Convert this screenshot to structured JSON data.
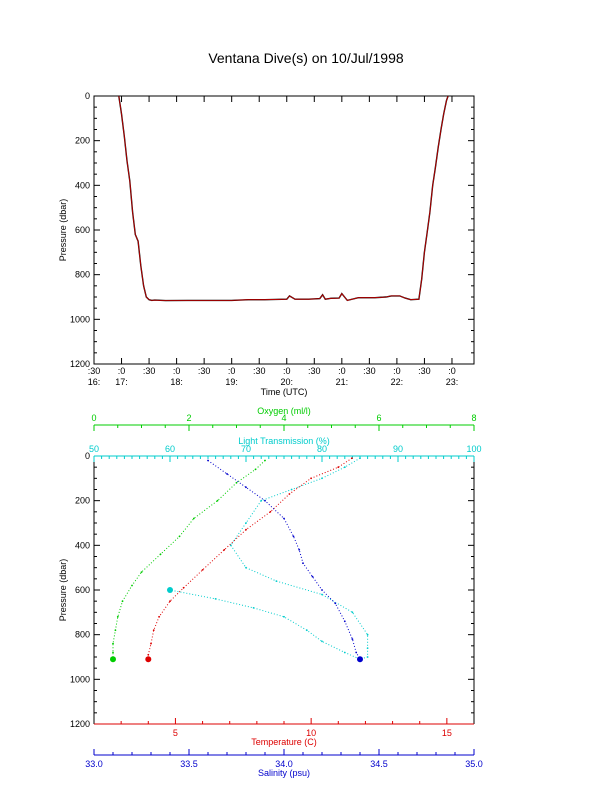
{
  "title": "Ventana Dive(s) on 10/Jul/1998",
  "colors": {
    "axis": "#000000",
    "depth_trace": "#cc0000",
    "oxygen": "#00cc00",
    "light": "#00cccc",
    "temperature": "#dd0000",
    "salinity": "#0000cc"
  },
  "chart_data": [
    {
      "type": "line",
      "title": "Ventana Dive(s) on 10/Jul/1998",
      "xlabel": "Time (UTC)",
      "ylabel": "Pressure (dbar)",
      "ylim": [
        1200,
        0
      ],
      "y_reversed": true,
      "yticks": [
        "0",
        "200",
        "400",
        "600",
        "800",
        "1000",
        "1200"
      ],
      "xticks": [
        {
          "top": ":30",
          "bottom": "16:"
        },
        {
          "top": ":0",
          "bottom": "17:"
        },
        {
          "top": ":30",
          "bottom": ""
        },
        {
          "top": ":0",
          "bottom": "18:"
        },
        {
          "top": ":30",
          "bottom": ""
        },
        {
          "top": ":0",
          "bottom": "19:"
        },
        {
          "top": ":30",
          "bottom": ""
        },
        {
          "top": ":0",
          "bottom": "20:"
        },
        {
          "top": ":30",
          "bottom": ""
        },
        {
          "top": ":0",
          "bottom": "21:"
        },
        {
          "top": ":30",
          "bottom": ""
        },
        {
          "top": ":0",
          "bottom": "22:"
        },
        {
          "top": ":30",
          "bottom": ""
        },
        {
          "top": ":0",
          "bottom": "23:"
        }
      ],
      "xlim_hours": [
        16.5,
        23.4
      ],
      "series": [
        {
          "x_hours": [
            16.95,
            17.0,
            17.05,
            17.1,
            17.15,
            17.2,
            17.25,
            17.3,
            17.35,
            17.4,
            17.45,
            17.5,
            17.55,
            17.6,
            17.8,
            18.2,
            18.6,
            19.0,
            19.3,
            19.6,
            20.0,
            20.05,
            20.15,
            20.4,
            20.6,
            20.65,
            20.7,
            20.8,
            20.95,
            21.0,
            21.1,
            21.3,
            21.6,
            21.8,
            21.9,
            22.05,
            22.15,
            22.25,
            22.4,
            22.45,
            22.5,
            22.55,
            22.6,
            22.65,
            22.7,
            22.75,
            22.8,
            22.85,
            22.9,
            22.93
          ],
          "y": [
            0,
            80,
            180,
            290,
            380,
            520,
            620,
            650,
            760,
            850,
            900,
            912,
            915,
            914,
            916,
            915,
            915,
            915,
            912,
            912,
            910,
            895,
            910,
            910,
            907,
            890,
            910,
            906,
            905,
            885,
            915,
            903,
            903,
            900,
            895,
            895,
            905,
            912,
            910,
            820,
            700,
            610,
            520,
            400,
            320,
            230,
            150,
            80,
            20,
            0
          ]
        }
      ]
    },
    {
      "type": "scatter",
      "ylabel": "Pressure (dbar)",
      "ylim": [
        1200,
        0
      ],
      "y_reversed": true,
      "yticks": [
        "0",
        "200",
        "400",
        "600",
        "800",
        "1000",
        "1200"
      ],
      "axes": {
        "oxygen": {
          "label": "Oxygen (ml/l)",
          "lim": [
            0,
            8
          ],
          "ticks": [
            "0",
            "2",
            "4",
            "6",
            "8"
          ]
        },
        "light": {
          "label": "Light Transmission (%)",
          "lim": [
            50,
            100
          ],
          "ticks": [
            "50",
            "60",
            "70",
            "80",
            "90",
            "100"
          ]
        },
        "temperature": {
          "label": "Temperature (C)",
          "lim": [
            2,
            16
          ],
          "ticks": [
            "5",
            "10",
            "15"
          ]
        },
        "salinity": {
          "label": "Salinity (psu)",
          "lim": [
            33.0,
            35.0
          ],
          "ticks": [
            "33.0",
            "33.5",
            "34.0",
            "34.5",
            "35.0"
          ]
        }
      },
      "series": [
        {
          "key": "oxygen",
          "x": [
            3.6,
            3.4,
            3.0,
            2.6,
            2.1,
            1.8,
            1.4,
            1.0,
            0.8,
            0.6,
            0.5,
            0.45,
            0.4,
            0.4,
            0.4
          ],
          "y": [
            20,
            60,
            120,
            200,
            280,
            360,
            440,
            520,
            580,
            650,
            720,
            780,
            840,
            880,
            910
          ]
        },
        {
          "key": "light",
          "x": [
            85,
            83,
            80,
            76,
            72,
            70,
            68,
            70,
            74,
            80,
            84,
            86,
            86,
            86,
            85,
            83,
            80,
            78,
            75,
            71,
            66,
            60
          ],
          "y": [
            10,
            50,
            100,
            150,
            200,
            300,
            400,
            500,
            560,
            620,
            700,
            800,
            860,
            900,
            910,
            880,
            830,
            780,
            720,
            680,
            640,
            600
          ]
        },
        {
          "key": "temperature",
          "x": [
            11.5,
            11.0,
            10.0,
            9.2,
            8.5,
            7.6,
            6.8,
            6.0,
            5.3,
            4.8,
            4.4,
            4.2,
            4.1,
            4.0,
            4.0
          ],
          "y": [
            10,
            50,
            100,
            170,
            250,
            330,
            420,
            510,
            590,
            650,
            720,
            780,
            840,
            890,
            910
          ]
        },
        {
          "key": "salinity",
          "x": [
            33.6,
            33.7,
            33.8,
            33.9,
            34.0,
            34.05,
            34.08,
            34.1,
            34.15,
            34.2,
            34.27,
            34.32,
            34.36,
            34.38,
            34.4
          ],
          "y": [
            20,
            80,
            140,
            200,
            280,
            360,
            420,
            480,
            540,
            600,
            660,
            740,
            820,
            880,
            910
          ]
        }
      ]
    }
  ]
}
